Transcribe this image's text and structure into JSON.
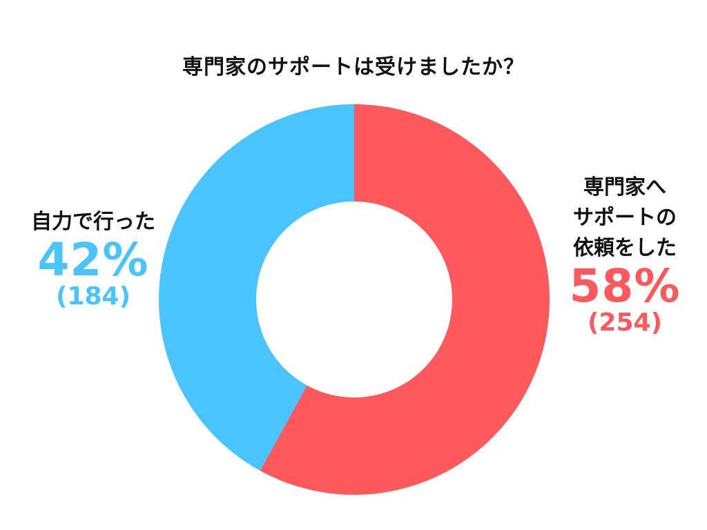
{
  "chart_data": {
    "type": "pie",
    "title": "専門家のサポートは受けましたか？",
    "donut": true,
    "start_angle_deg": 0,
    "direction": "clockwise",
    "series": [
      {
        "name": "専門家へ\nサポートの\n依頼をした",
        "percent_label": "58%",
        "count_label": "(254)",
        "value": 254,
        "color": "#fe5a5c"
      },
      {
        "name": "自力で行った",
        "percent_label": "42%",
        "count_label": "(184)",
        "value": 184,
        "color": "#4ac3fe"
      }
    ]
  }
}
